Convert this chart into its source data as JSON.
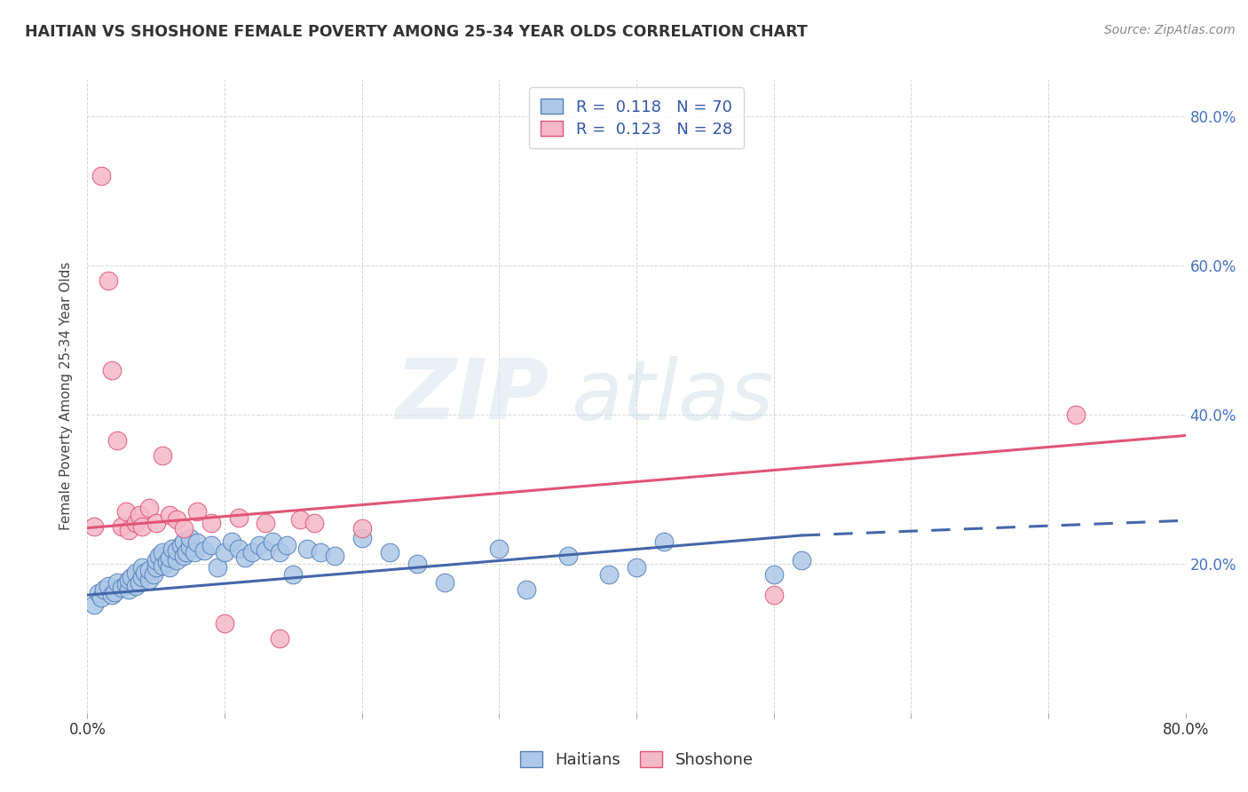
{
  "title": "HAITIAN VS SHOSHONE FEMALE POVERTY AMONG 25-34 YEAR OLDS CORRELATION CHART",
  "source": "Source: ZipAtlas.com",
  "ylabel": "Female Poverty Among 25-34 Year Olds",
  "xlim": [
    0.0,
    0.8
  ],
  "ylim": [
    0.0,
    0.85
  ],
  "background_color": "#ffffff",
  "grid_color": "#cccccc",
  "watermark_zip": "ZIP",
  "watermark_atlas": "atlas",
  "color_haitian": "#adc8e8",
  "color_shoshone": "#f5b8c8",
  "edge_color_haitian": "#5580b8",
  "edge_color_shoshone": "#e05575",
  "line_color_haitian": "#4466aa",
  "line_color_shoshone": "#e05575",
  "haitian_x": [
    0.005,
    0.008,
    0.01,
    0.012,
    0.015,
    0.018,
    0.02,
    0.022,
    0.025,
    0.028,
    0.03,
    0.03,
    0.032,
    0.035,
    0.035,
    0.038,
    0.04,
    0.04,
    0.042,
    0.045,
    0.045,
    0.048,
    0.05,
    0.05,
    0.052,
    0.055,
    0.055,
    0.058,
    0.06,
    0.06,
    0.062,
    0.065,
    0.065,
    0.068,
    0.07,
    0.07,
    0.072,
    0.075,
    0.075,
    0.078,
    0.08,
    0.085,
    0.09,
    0.095,
    0.1,
    0.105,
    0.11,
    0.115,
    0.12,
    0.125,
    0.13,
    0.135,
    0.14,
    0.145,
    0.15,
    0.16,
    0.17,
    0.18,
    0.2,
    0.22,
    0.24,
    0.26,
    0.3,
    0.32,
    0.35,
    0.38,
    0.4,
    0.42,
    0.5,
    0.52
  ],
  "haitian_y": [
    0.145,
    0.16,
    0.155,
    0.165,
    0.17,
    0.158,
    0.162,
    0.175,
    0.168,
    0.172,
    0.165,
    0.178,
    0.182,
    0.17,
    0.188,
    0.175,
    0.182,
    0.195,
    0.188,
    0.178,
    0.192,
    0.185,
    0.195,
    0.205,
    0.21,
    0.198,
    0.215,
    0.202,
    0.195,
    0.208,
    0.22,
    0.205,
    0.218,
    0.225,
    0.21,
    0.23,
    0.215,
    0.222,
    0.235,
    0.215,
    0.228,
    0.218,
    0.225,
    0.195,
    0.215,
    0.23,
    0.22,
    0.208,
    0.215,
    0.225,
    0.218,
    0.23,
    0.215,
    0.225,
    0.185,
    0.22,
    0.215,
    0.21,
    0.235,
    0.215,
    0.2,
    0.175,
    0.22,
    0.165,
    0.21,
    0.185,
    0.195,
    0.23,
    0.185,
    0.205
  ],
  "shoshone_x": [
    0.005,
    0.01,
    0.015,
    0.018,
    0.022,
    0.025,
    0.028,
    0.03,
    0.035,
    0.038,
    0.04,
    0.045,
    0.05,
    0.055,
    0.06,
    0.065,
    0.07,
    0.08,
    0.09,
    0.1,
    0.11,
    0.13,
    0.14,
    0.155,
    0.165,
    0.2,
    0.5,
    0.72
  ],
  "shoshone_y": [
    0.25,
    0.72,
    0.58,
    0.46,
    0.365,
    0.25,
    0.27,
    0.245,
    0.255,
    0.265,
    0.25,
    0.275,
    0.255,
    0.345,
    0.265,
    0.26,
    0.248,
    0.27,
    0.255,
    0.12,
    0.262,
    0.255,
    0.1,
    0.26,
    0.255,
    0.248,
    0.158,
    0.4
  ],
  "haitian_line_x0": 0.0,
  "haitian_line_y0": 0.158,
  "haitian_line_x1": 0.52,
  "haitian_line_y1": 0.238,
  "haitian_line_x2": 0.8,
  "haitian_line_y2": 0.258,
  "shoshone_line_x0": 0.0,
  "shoshone_line_y0": 0.248,
  "shoshone_line_x1": 0.8,
  "shoshone_line_y1": 0.372
}
